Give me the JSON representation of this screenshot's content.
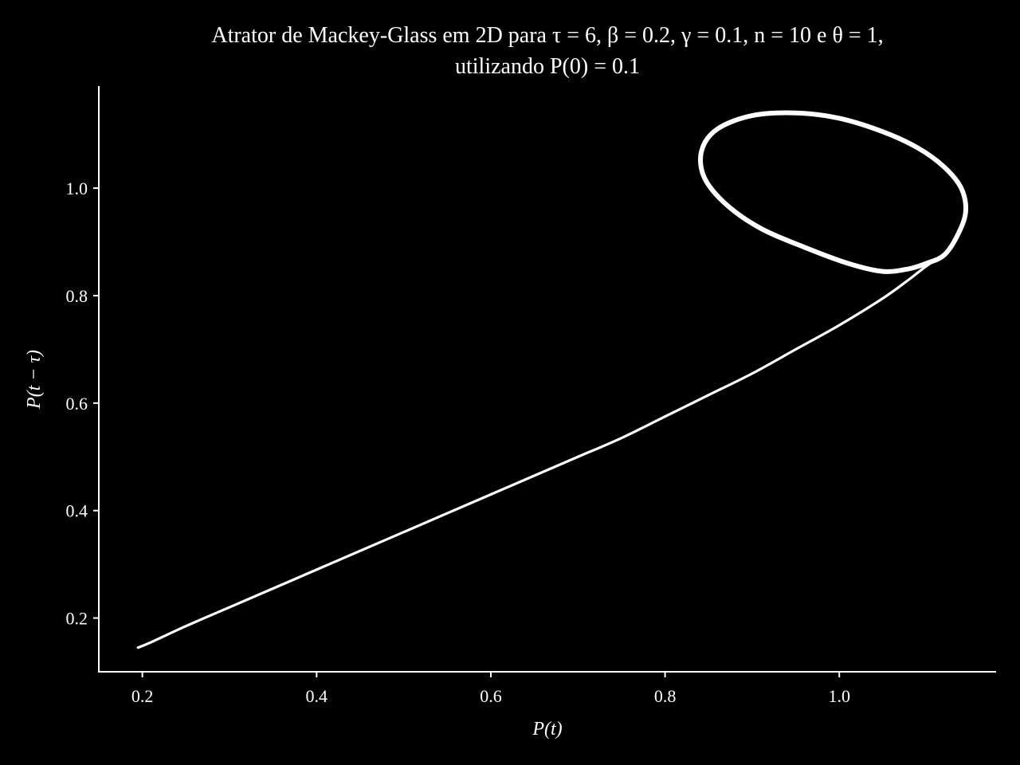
{
  "chart_data": {
    "type": "line",
    "title_line1": "Atrator de Mackey-Glass em 2D para τ = 6, β = 0.2, γ = 0.1, n = 10 e θ = 1,",
    "title_line2": "utilizando P(0) = 0.1",
    "xlabel": "P(t)",
    "ylabel": "P(t − τ)",
    "xlim": [
      0.15,
      1.18
    ],
    "ylim": [
      0.1,
      1.19
    ],
    "xticks": [
      "0.2",
      "0.4",
      "0.6",
      "0.8",
      "1.0"
    ],
    "xtick_values": [
      0.2,
      0.4,
      0.6,
      0.8,
      1.0
    ],
    "yticks": [
      "0.2",
      "0.4",
      "0.6",
      "0.8",
      "1.0"
    ],
    "ytick_values": [
      0.2,
      0.4,
      0.6,
      0.8,
      1.0
    ],
    "grid": false,
    "line_color": "#ffffff",
    "background": "#000000",
    "series": [
      {
        "x": [
          0.195,
          0.21,
          0.25,
          0.3,
          0.35,
          0.4,
          0.45,
          0.5,
          0.55,
          0.6,
          0.65,
          0.7,
          0.75,
          0.8,
          0.85,
          0.9,
          0.95,
          1.0,
          1.05,
          1.08,
          1.1,
          1.12
        ],
        "y": [
          0.145,
          0.155,
          0.185,
          0.22,
          0.255,
          0.29,
          0.325,
          0.36,
          0.395,
          0.43,
          0.465,
          0.5,
          0.535,
          0.575,
          0.615,
          0.655,
          0.7,
          0.745,
          0.795,
          0.83,
          0.855,
          0.875
        ]
      },
      {
        "x": [
          1.12,
          1.135,
          1.145,
          1.14,
          1.12,
          1.09,
          1.05,
          1.0,
          0.95,
          0.9,
          0.86,
          0.842,
          0.845,
          0.87,
          0.91,
          0.96,
          1.01,
          1.05,
          1.08,
          1.1,
          1.12
        ],
        "y": [
          0.875,
          0.91,
          0.955,
          1.0,
          1.04,
          1.075,
          1.105,
          1.13,
          1.14,
          1.135,
          1.11,
          1.07,
          1.02,
          0.97,
          0.925,
          0.89,
          0.86,
          0.845,
          0.85,
          0.86,
          0.875
        ]
      }
    ]
  }
}
